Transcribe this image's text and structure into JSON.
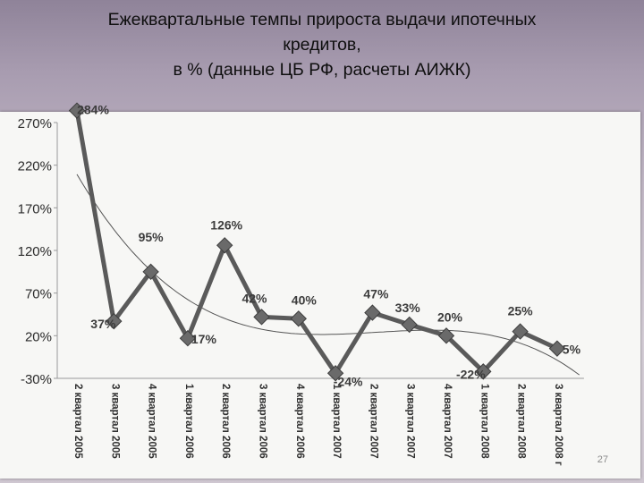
{
  "slide": {
    "title_lines": [
      "Ежеквартальные темпы прироста выдачи ипотечных",
      "кредитов,",
      "в % (данные ЦБ РФ, расчеты АИЖК)"
    ],
    "page_number": "27"
  },
  "chart_data": {
    "type": "line",
    "categories": [
      "2 квартал 2005",
      "3 квартал 2005",
      "4 квартал 2005",
      "1 квартал 2006",
      "2 квартал 2006",
      "3 квартал 2006",
      "4 квартал 2006",
      "1 квартал 2007",
      "2 квартал 2007",
      "3 квартал 2007",
      "4 квартал 2007",
      "1 квартал 2008",
      "2 квартал 2008",
      "3 квартал 2008 г"
    ],
    "values": [
      284,
      37,
      95,
      17,
      126,
      42,
      40,
      -24,
      47,
      33,
      20,
      -22,
      25,
      5
    ],
    "data_labels": [
      "284%",
      "37%",
      "95%",
      "17%",
      "126%",
      "42%",
      "40%",
      "-24%",
      "47%",
      "33%",
      "20%",
      "-22%",
      "25%",
      "5%"
    ],
    "trendline": {
      "type": "polynomial",
      "color": "#555555"
    },
    "ylim": [
      -30,
      270
    ],
    "yticks": [
      270,
      220,
      170,
      120,
      70,
      20,
      -30
    ],
    "ytick_labels": [
      "270%",
      "220%",
      "170%",
      "120%",
      "70%",
      "20%",
      "-30%"
    ],
    "grid": false,
    "line_color": "#5a5a5a",
    "marker_color": "#6a6a6a"
  }
}
